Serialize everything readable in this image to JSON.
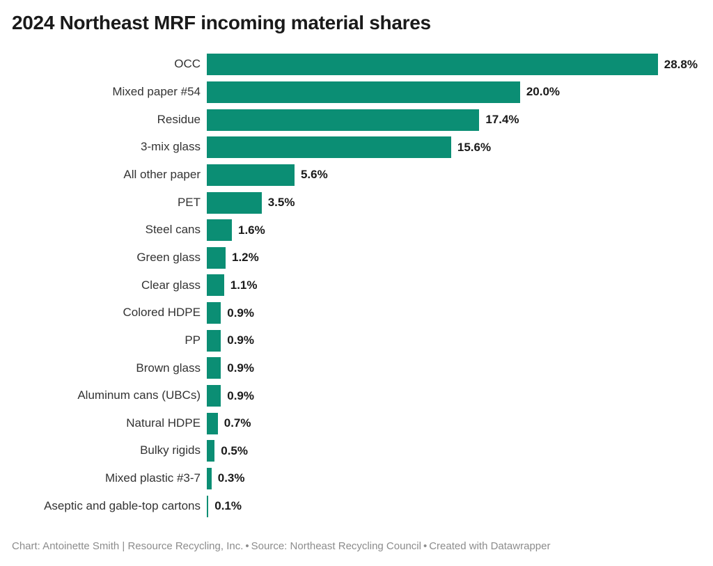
{
  "header": {
    "title": "2024 Northeast MRF incoming material shares"
  },
  "chart_data": {
    "type": "bar",
    "orientation": "horizontal",
    "title": "2024 Northeast MRF incoming material shares",
    "categories": [
      "OCC",
      "Mixed paper #54",
      "Residue",
      "3-mix glass",
      "All other paper",
      "PET",
      "Steel cans",
      "Green glass",
      "Clear glass",
      "Colored HDPE",
      "PP",
      "Brown glass",
      "Aluminum cans (UBCs)",
      "Natural HDPE",
      "Bulky rigids",
      "Mixed plastic #3-7",
      "Aseptic and gable-top cartons"
    ],
    "values": [
      28.8,
      20.0,
      17.4,
      15.6,
      5.6,
      3.5,
      1.6,
      1.2,
      1.1,
      0.9,
      0.9,
      0.9,
      0.9,
      0.7,
      0.5,
      0.3,
      0.1
    ],
    "value_labels": [
      "28.8%",
      "20.0%",
      "17.4%",
      "15.6%",
      "5.6%",
      "3.5%",
      "1.6%",
      "1.2%",
      "1.1%",
      "0.9%",
      "0.9%",
      "0.9%",
      "0.9%",
      "0.7%",
      "0.5%",
      "0.3%",
      "0.1%"
    ],
    "unit": "%",
    "xlim": [
      0,
      28.8
    ],
    "grid": false,
    "legend": "none",
    "value_label_position": "outside-end",
    "bar_color": "#0b8e74"
  },
  "footer": {
    "chart_credit": "Chart: Antoinette Smith | Resource Recycling, Inc.",
    "separator": "•",
    "source_label": "Source:",
    "source_name": "Northeast Recycling Council",
    "created_with": "Created with Datawrapper"
  }
}
